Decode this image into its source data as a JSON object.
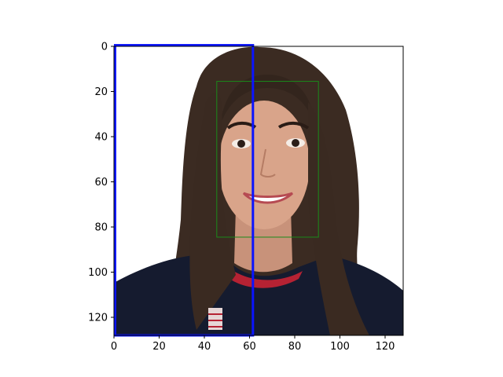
{
  "image_data": {
    "type": "image",
    "subject": "face photograph with overlay boxes",
    "axes": {
      "xlim": [
        0,
        128
      ],
      "ylim": [
        128,
        0
      ],
      "xticks": [
        0,
        20,
        40,
        60,
        80,
        100,
        120
      ],
      "yticks": [
        0,
        20,
        40,
        60,
        80,
        100,
        120
      ]
    },
    "overlays": [
      {
        "name": "green-box",
        "color": "#1a8a1a",
        "x0": 45.5,
        "y0": 15.5,
        "x1": 90.5,
        "y1": 84.5
      },
      {
        "name": "blue-box",
        "color": "#0a14ff",
        "x0": 0.5,
        "y0": -0.5,
        "x1": 61.5,
        "y1": 128
      }
    ],
    "colors": {
      "background": "#ffffff",
      "axes": "#000000",
      "shirt": "#141a2e",
      "stripe": "#b52233",
      "hair": "#3a2a22",
      "skin": "#d9a48a"
    }
  }
}
